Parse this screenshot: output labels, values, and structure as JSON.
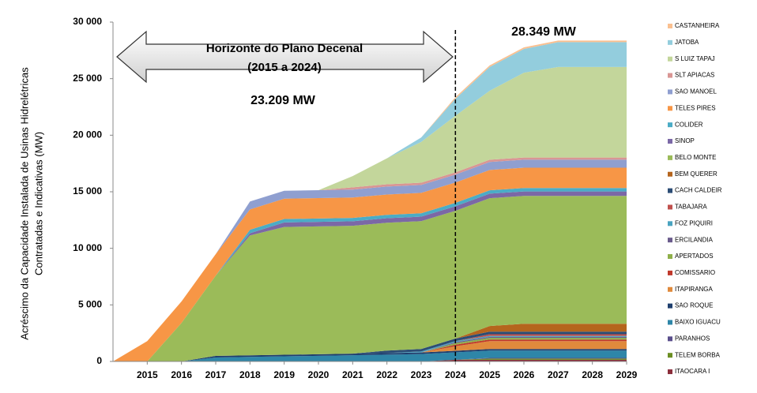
{
  "chart_data": {
    "type": "stacked-area",
    "y_label_lines": [
      "Acréscimo da Capacidade Instalada de Usinas Hidrelétricas",
      "Contratadas e Indicativas (MW)"
    ],
    "annotations": {
      "horizon_title": "Horizonte do Plano Decenal",
      "horizon_range": "(2015 a 2024)",
      "total_2024": "23.209 MW",
      "total_2029": "28.349 MW"
    },
    "vline": 2024,
    "x": [
      2014,
      2015,
      2016,
      2017,
      2018,
      2019,
      2020,
      2021,
      2022,
      2023,
      2024,
      2025,
      2026,
      2027,
      2028,
      2029
    ],
    "xlim": [
      2014,
      2029
    ],
    "xticks": [
      2015,
      2016,
      2017,
      2018,
      2019,
      2020,
      2021,
      2022,
      2023,
      2024,
      2025,
      2026,
      2027,
      2028,
      2029
    ],
    "ylim": [
      0,
      30000
    ],
    "yticks": [
      0,
      {
        "value": 5000,
        "label": "5 000"
      },
      {
        "value": 10000,
        "label": "10 000"
      },
      {
        "value": 15000,
        "label": "15 000"
      },
      {
        "value": 20000,
        "label": "20 000"
      },
      {
        "value": 25000,
        "label": "25 000"
      },
      {
        "value": 30000,
        "label": "30 000"
      }
    ],
    "series": [
      {
        "name": "CASTANHEIRA",
        "color": "#fac090",
        "values": [
          0,
          0,
          0,
          0,
          0,
          0,
          0,
          0,
          0,
          0,
          140,
          140,
          140,
          140,
          140,
          140
        ]
      },
      {
        "name": "JATOBA",
        "color": "#93cddd",
        "values": [
          0,
          0,
          0,
          0,
          0,
          0,
          0,
          0,
          0,
          400,
          1500,
          2100,
          2100,
          2200,
          2200,
          2200
        ]
      },
      {
        "name": "S LUIZ TAPAJ",
        "color": "#c3d69b",
        "values": [
          0,
          0,
          0,
          0,
          0,
          0,
          0,
          1000,
          2300,
          3600,
          5000,
          6100,
          7500,
          8000,
          8000,
          8000
        ]
      },
      {
        "name": "SLT APIACAS",
        "color": "#d99694",
        "values": [
          0,
          0,
          0,
          0,
          0,
          0,
          0,
          200,
          200,
          200,
          200,
          200,
          200,
          200,
          200,
          200
        ]
      },
      {
        "name": "SAO MANOEL",
        "color": "#8f9fd0",
        "values": [
          0,
          0,
          0,
          0,
          700,
          700,
          700,
          700,
          700,
          700,
          700,
          700,
          700,
          700,
          700,
          700
        ]
      },
      {
        "name": "TELES PIRES",
        "color": "#f79646",
        "values": [
          0,
          1800,
          1900,
          1900,
          1800,
          1800,
          1800,
          1800,
          1800,
          1800,
          1800,
          1800,
          1800,
          1800,
          1800,
          1800
        ]
      },
      {
        "name": "COLIDER",
        "color": "#4bacc6",
        "values": [
          0,
          0,
          0,
          0,
          300,
          300,
          300,
          300,
          300,
          300,
          300,
          300,
          300,
          300,
          300,
          300
        ]
      },
      {
        "name": "SINOP",
        "color": "#7b68a6",
        "values": [
          0,
          0,
          0,
          0,
          200,
          400,
          400,
          400,
          400,
          400,
          400,
          400,
          400,
          400,
          400,
          400
        ]
      },
      {
        "name": "BELO MONTE",
        "color": "#9bbb59",
        "values": [
          0,
          0,
          3400,
          7100,
          10600,
          11300,
          11300,
          11300,
          11300,
          11300,
          11300,
          11300,
          11300,
          11300,
          11300,
          11300
        ]
      },
      {
        "name": "BEM QUERER",
        "color": "#b5651d",
        "values": [
          0,
          0,
          0,
          0,
          0,
          0,
          0,
          0,
          0,
          0,
          0,
          500,
          700,
          700,
          700,
          700
        ]
      },
      {
        "name": "CACH CALDEIR",
        "color": "#2c4d75",
        "values": [
          0,
          0,
          0,
          0,
          0,
          0,
          0,
          0,
          220,
          220,
          220,
          220,
          220,
          220,
          220,
          220
        ]
      },
      {
        "name": "TABAJARA",
        "color": "#c0504d",
        "values": [
          0,
          0,
          0,
          0,
          0,
          0,
          0,
          0,
          0,
          0,
          0,
          150,
          150,
          150,
          150,
          150
        ]
      },
      {
        "name": "FOZ PIQUIRI",
        "color": "#4aa3c0",
        "values": [
          0,
          0,
          0,
          0,
          0,
          0,
          0,
          0,
          0,
          90,
          90,
          90,
          90,
          90,
          90,
          90
        ]
      },
      {
        "name": "ERCILANDIA",
        "color": "#6a5b8c",
        "values": [
          0,
          0,
          0,
          0,
          0,
          0,
          0,
          0,
          0,
          0,
          90,
          90,
          90,
          90,
          90,
          90
        ]
      },
      {
        "name": "APERTADOS",
        "color": "#8fb04a",
        "values": [
          0,
          0,
          0,
          0,
          0,
          0,
          0,
          0,
          0,
          0,
          140,
          140,
          140,
          140,
          140,
          140
        ]
      },
      {
        "name": "COMISSARIO",
        "color": "#c0392b",
        "values": [
          0,
          0,
          0,
          0,
          0,
          0,
          0,
          0,
          0,
          0,
          140,
          140,
          140,
          140,
          140,
          140
        ]
      },
      {
        "name": "ITAPIRANGA",
        "color": "#e08a3c",
        "values": [
          0,
          0,
          0,
          0,
          0,
          0,
          0,
          0,
          0,
          0,
          400,
          700,
          700,
          700,
          700,
          700
        ]
      },
      {
        "name": "SAO ROQUE",
        "color": "#1f3f6e",
        "values": [
          0,
          0,
          0,
          140,
          140,
          140,
          140,
          140,
          140,
          140,
          140,
          140,
          140,
          140,
          140,
          140
        ]
      },
      {
        "name": "BAIXO IGUACU",
        "color": "#2e86a8",
        "values": [
          0,
          0,
          0,
          350,
          400,
          450,
          500,
          550,
          600,
          650,
          650,
          650,
          650,
          650,
          650,
          650
        ]
      },
      {
        "name": "PARANHOS",
        "color": "#5a4e8c",
        "values": [
          0,
          0,
          0,
          0,
          0,
          0,
          0,
          0,
          0,
          0,
          0,
          60,
          60,
          60,
          60,
          60
        ]
      },
      {
        "name": "TELEM BORBA",
        "color": "#6b8e23",
        "values": [
          0,
          0,
          0,
          0,
          0,
          0,
          0,
          0,
          0,
          0,
          0,
          100,
          100,
          100,
          100,
          100
        ]
      },
      {
        "name": "ITAOCARA I",
        "color": "#8b2d3a",
        "values": [
          0,
          0,
          0,
          0,
          0,
          0,
          0,
          0,
          0,
          0,
          150,
          150,
          150,
          150,
          150,
          150
        ]
      }
    ]
  }
}
